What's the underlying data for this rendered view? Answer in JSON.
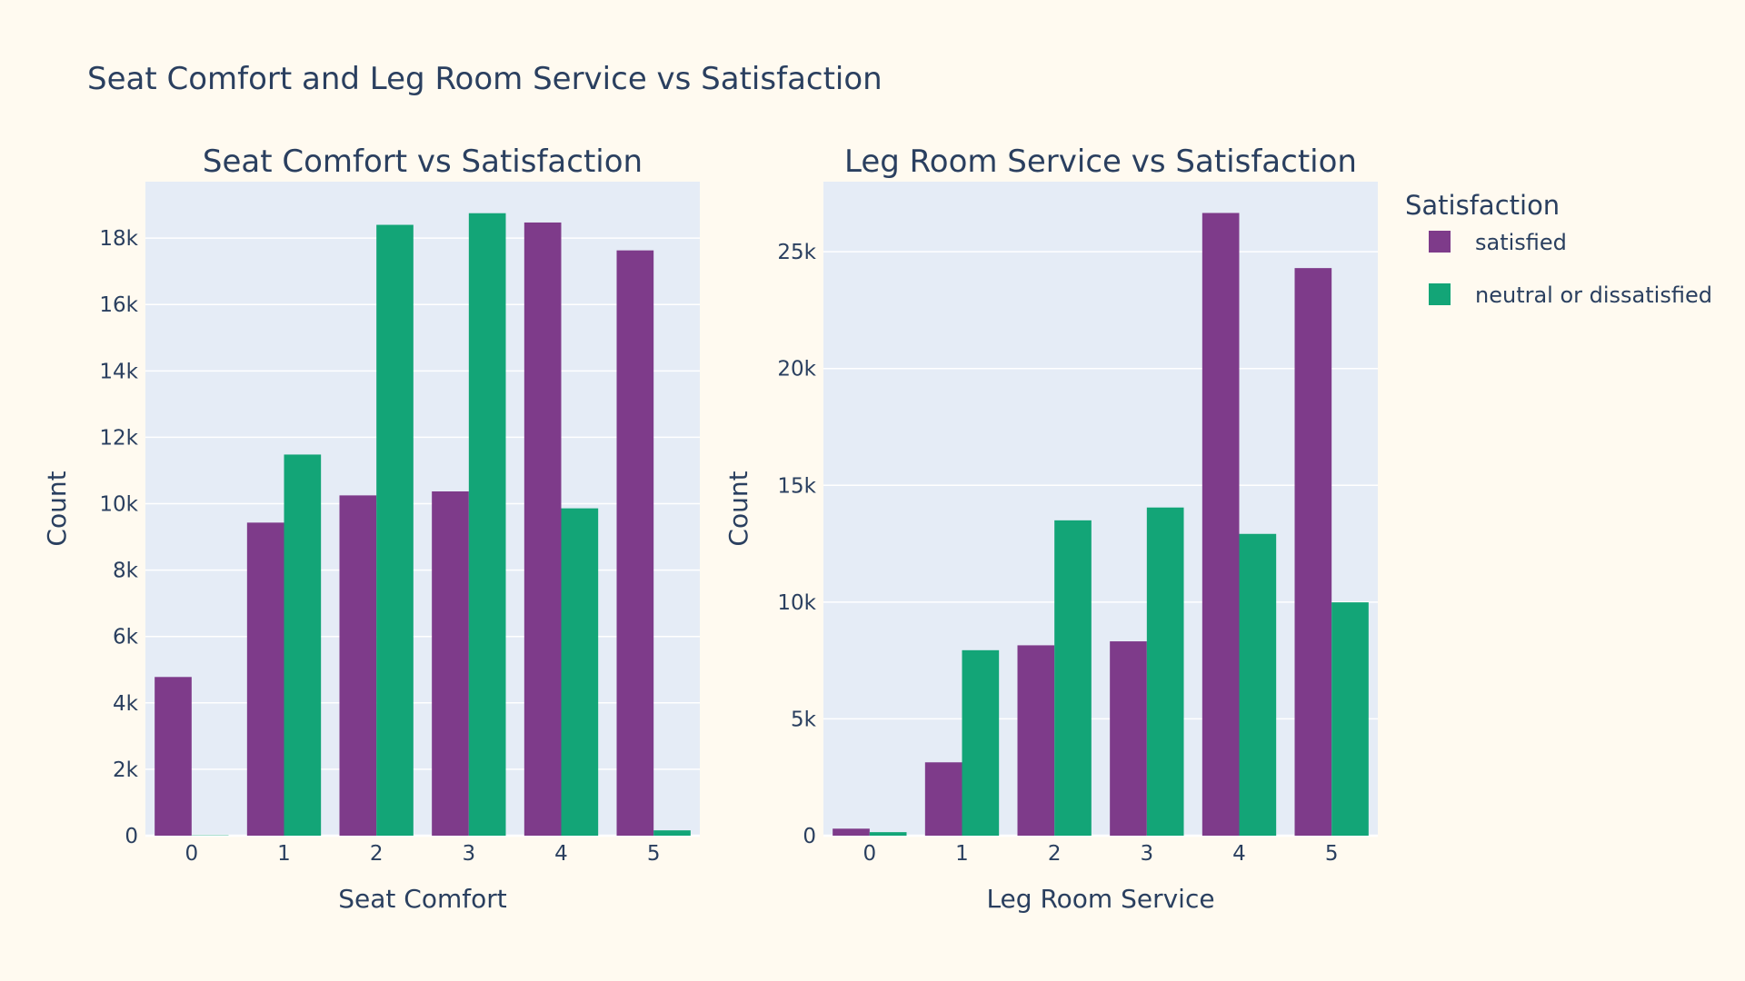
{
  "title": "Seat Comfort and Leg Room Service vs Satisfaction",
  "legend": {
    "title": "Satisfaction",
    "items": [
      {
        "label": "satisfied",
        "color": "#7e3b8a"
      },
      {
        "label": "neutral or dissatisfied",
        "color": "#13a577"
      }
    ]
  },
  "chart_data": [
    {
      "type": "bar",
      "title": "Seat Comfort vs Satisfaction",
      "xlabel": "Seat Comfort",
      "ylabel": "Count",
      "categories": [
        "0",
        "1",
        "2",
        "3",
        "4",
        "5"
      ],
      "ylim": [
        0,
        19700
      ],
      "yticks": [
        0,
        2000,
        4000,
        6000,
        8000,
        10000,
        12000,
        14000,
        16000,
        18000
      ],
      "ytick_labels": [
        "0",
        "2k",
        "4k",
        "6k",
        "8k",
        "10k",
        "12k",
        "14k",
        "16k",
        "18k"
      ],
      "series": [
        {
          "name": "satisfied",
          "values": [
            4780,
            9430,
            10250,
            10370,
            18470,
            17630
          ]
        },
        {
          "name": "neutral or dissatisfied",
          "values": [
            10,
            11480,
            18400,
            18750,
            9860,
            160
          ]
        }
      ],
      "grid": true
    },
    {
      "type": "bar",
      "title": "Leg Room Service vs Satisfaction",
      "xlabel": "Leg Room Service",
      "ylabel": "Count",
      "categories": [
        "0",
        "1",
        "2",
        "3",
        "4",
        "5"
      ],
      "ylim": [
        0,
        28000
      ],
      "yticks": [
        0,
        5000,
        10000,
        15000,
        20000,
        25000
      ],
      "ytick_labels": [
        "0",
        "5k",
        "10k",
        "15k",
        "20k",
        "25k"
      ],
      "series": [
        {
          "name": "satisfied",
          "values": [
            300,
            3140,
            8150,
            8320,
            26660,
            24300
          ]
        },
        {
          "name": "neutral or dissatisfied",
          "values": [
            150,
            7940,
            13500,
            14050,
            12920,
            9990
          ]
        }
      ],
      "grid": true
    }
  ]
}
